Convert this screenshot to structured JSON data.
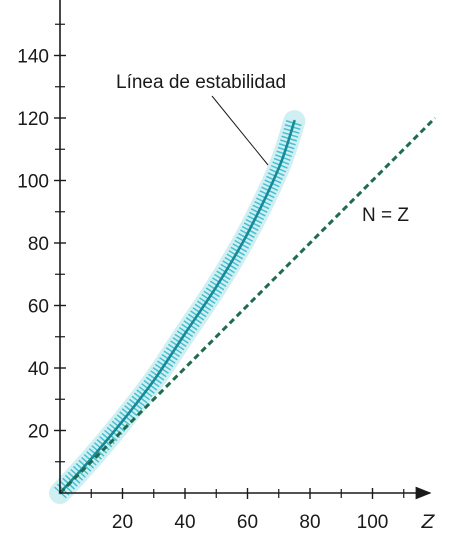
{
  "chart_data": {
    "type": "line",
    "title": "",
    "xlabel": "Z",
    "ylabel": "",
    "xlim": [
      0,
      115
    ],
    "ylim": [
      0,
      155
    ],
    "x_ticks": [
      20,
      40,
      60,
      80,
      100
    ],
    "y_ticks": [
      20,
      40,
      60,
      80,
      100,
      120,
      140
    ],
    "x_tick_labels": [
      "20",
      "40",
      "60",
      "80",
      "100"
    ],
    "y_tick_labels": [
      "20",
      "40",
      "60",
      "80",
      "100",
      "120",
      "140"
    ],
    "grid": false,
    "legend": "none",
    "series": [
      {
        "name": "",
        "style": "solid",
        "color": "#17899a",
        "band_color": "#2bb7c7",
        "x": [
          0,
          10,
          20,
          30,
          40,
          50,
          60,
          70,
          75
        ],
        "y": [
          0,
          11,
          23,
          36,
          51,
          66,
          83,
          104,
          119
        ]
      },
      {
        "name": "",
        "style": "dashed",
        "color": "#1f6b4c",
        "x": [
          0,
          120
        ],
        "y": [
          0,
          120
        ]
      }
    ],
    "annotations": [
      {
        "text": "Línea de estabilidad",
        "target": "stability-curve"
      },
      {
        "text": "N = Z",
        "target": "n-equals-z-line"
      }
    ]
  }
}
